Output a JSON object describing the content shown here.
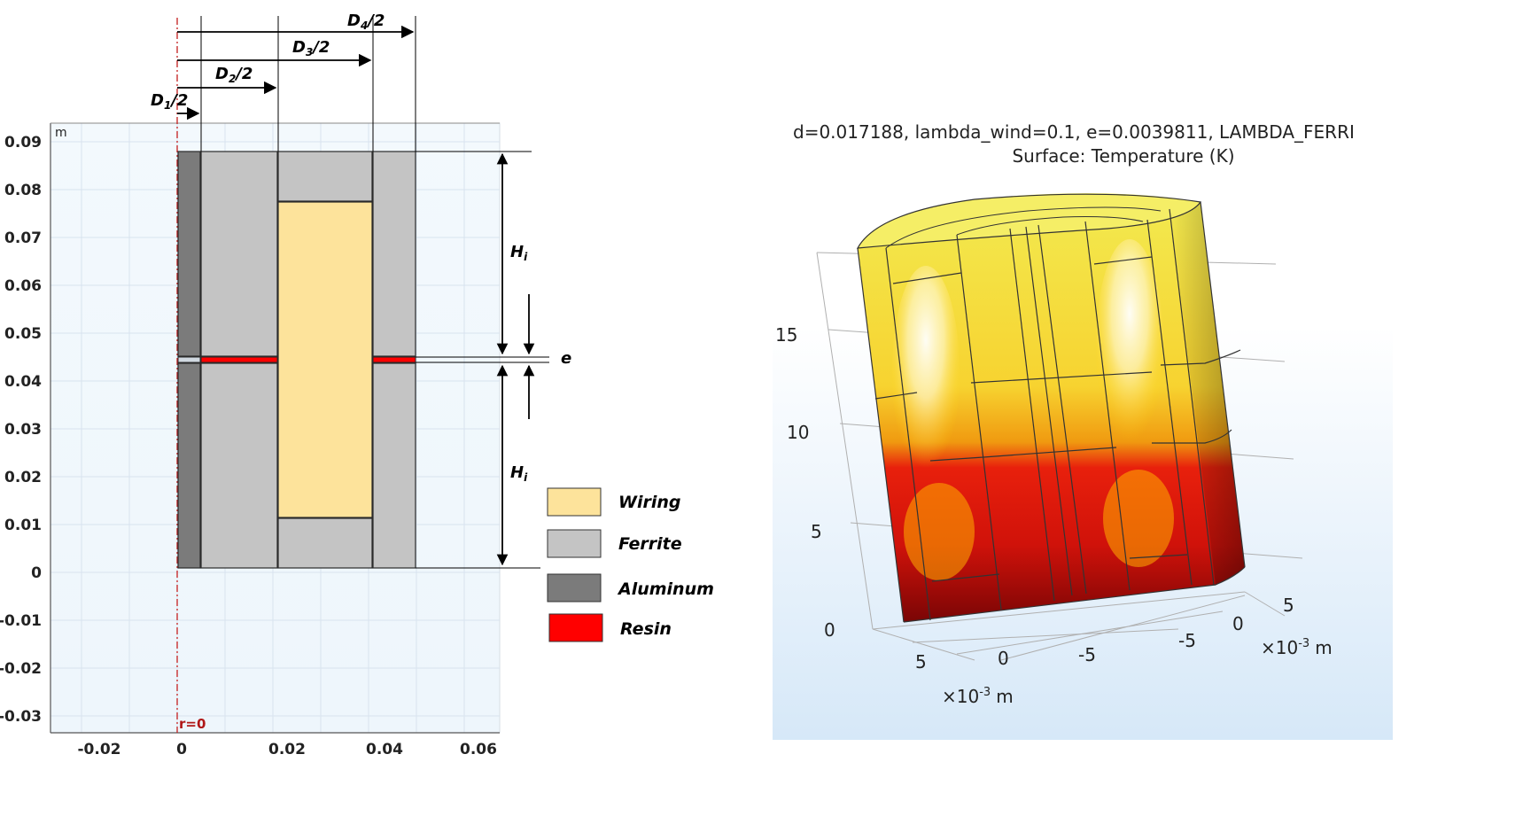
{
  "left_panel": {
    "unit": "m",
    "y_ticks": [
      "0.09",
      "0.08",
      "0.07",
      "0.06",
      "0.05",
      "0.04",
      "0.03",
      "0.02",
      "0.01",
      "0",
      "-0.01",
      "-0.02",
      "-0.03"
    ],
    "x_ticks": [
      "-0.02",
      "0",
      "0.02",
      "0.04",
      "0.06"
    ],
    "axis_marker": "r=0",
    "dimensions": {
      "d1": {
        "main": "D",
        "sub": "1",
        "tail": "/2"
      },
      "d2": {
        "main": "D",
        "sub": "2",
        "tail": "/2"
      },
      "d3": {
        "main": "D",
        "sub": "3",
        "tail": "/2"
      },
      "d4": {
        "main": "D",
        "sub": "4",
        "tail": "/2"
      },
      "h_upper": {
        "main": "H",
        "sub": "i"
      },
      "h_lower": {
        "main": "H",
        "sub": "i"
      },
      "e": "e"
    },
    "legend": [
      {
        "label": "Wiring",
        "color": "#fde39b"
      },
      {
        "label": "Ferrite",
        "color": "#c4c4c4"
      },
      {
        "label": "Aluminum",
        "color": "#7b7b7b"
      },
      {
        "label": "Resin",
        "color": "#ff0000"
      }
    ]
  },
  "right_panel": {
    "title_line1": "d=0.017188, lambda_wind=0.1, e=0.0039811, LAMBDA_FERRI",
    "title_line2": "Surface: Temperature (K)",
    "z_ticks": [
      "15",
      "10",
      "5",
      "0"
    ],
    "x_ticks": [
      "5",
      "0",
      "-5"
    ],
    "y_ticks": [
      "5",
      "0",
      "-5"
    ],
    "x_scale": {
      "base": "×10",
      "exp": "-3",
      "unit": "m"
    },
    "y_scale": {
      "base": "×10",
      "exp": "-3",
      "unit": "m"
    }
  }
}
